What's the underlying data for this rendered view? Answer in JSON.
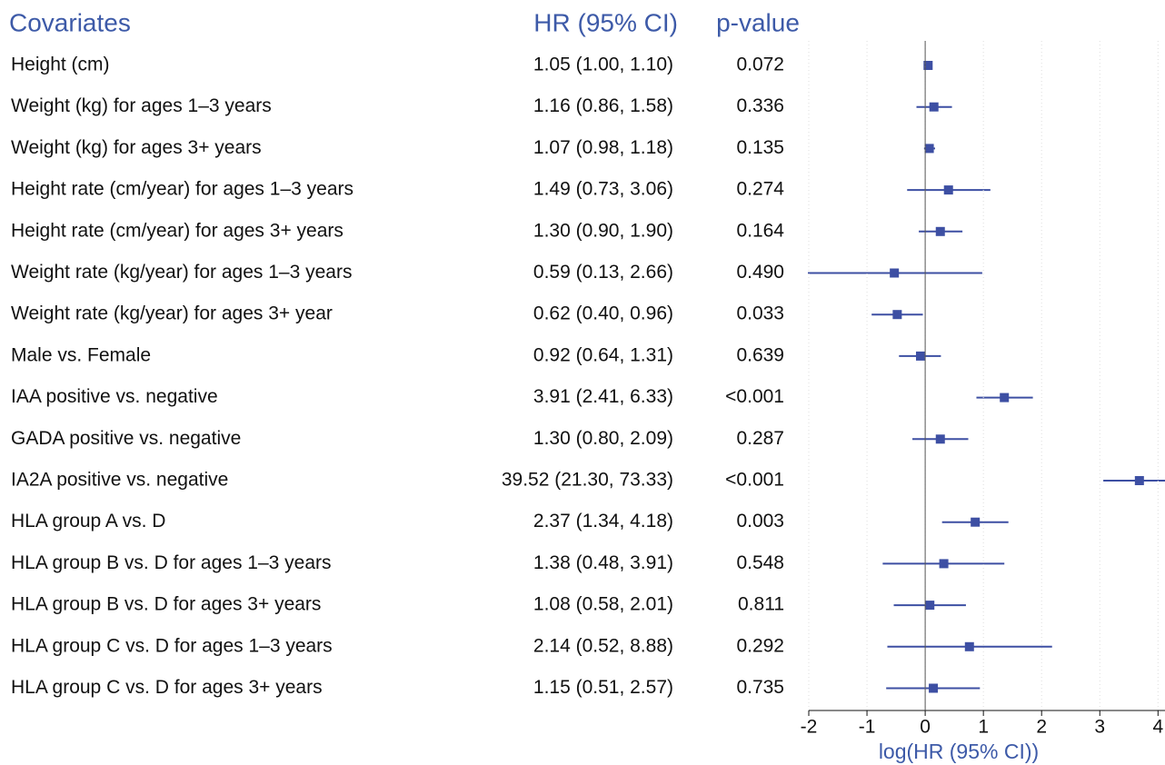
{
  "chart_data": {
    "type": "forest",
    "column_headers": [
      "Covariates",
      "HR (95% CI)",
      "p-value"
    ],
    "categories": [
      "Height (cm)",
      "Weight (kg) for ages 1–3 years",
      "Weight (kg) for ages 3+ years",
      "Height rate (cm/year) for ages 1–3 years",
      "Height rate (cm/year) for ages 3+ years",
      "Weight rate (kg/year) for ages 1–3 years",
      "Weight rate (kg/year) for ages 3+ year",
      "Male vs. Female",
      "IAA positive vs. negative",
      "GADA positive vs. negative",
      "IA2A positive vs. negative",
      "HLA group A vs. D",
      "HLA group B vs. D for ages 1–3 years",
      "HLA group B vs. D for ages 3+ years",
      "HLA group C vs. D for ages 1–3 years",
      "HLA group C vs. D for ages 3+ years"
    ],
    "hr_labels": [
      "1.05 (1.00, 1.10)",
      "1.16 (0.86, 1.58)",
      "1.07 (0.98, 1.18)",
      "1.49 (0.73, 3.06)",
      "1.30 (0.90, 1.90)",
      "0.59 (0.13, 2.66)",
      "0.62 (0.40, 0.96)",
      "0.92 (0.64, 1.31)",
      "3.91 (2.41, 6.33)",
      "1.30 (0.80, 2.09)",
      "39.52 (21.30, 73.33)",
      "2.37 (1.34, 4.18)",
      "1.38 (0.48, 3.91)",
      "1.08 (0.58, 2.01)",
      "2.14 (0.52, 8.88)",
      "1.15 (0.51, 2.57)"
    ],
    "p_values": [
      "0.072",
      "0.336",
      "0.135",
      "0.274",
      "0.164",
      "0.490",
      "0.033",
      "0.639",
      "<0.001",
      "0.287",
      "<0.001",
      "0.003",
      "0.548",
      "0.811",
      "0.292",
      "0.735"
    ],
    "values": [
      0.05,
      0.15,
      0.07,
      0.4,
      0.26,
      -0.53,
      -0.48,
      -0.08,
      1.36,
      0.26,
      3.68,
      0.86,
      0.32,
      0.08,
      0.76,
      0.14
    ],
    "lower": [
      0.0,
      -0.15,
      -0.02,
      -0.31,
      -0.11,
      -2.04,
      -0.92,
      -0.45,
      0.88,
      -0.22,
      3.06,
      0.29,
      -0.73,
      -0.54,
      -0.65,
      -0.67
    ],
    "upper": [
      0.1,
      0.46,
      0.17,
      1.12,
      0.64,
      0.98,
      -0.04,
      0.27,
      1.85,
      0.74,
      4.3,
      1.43,
      1.36,
      0.7,
      2.18,
      0.94
    ],
    "color": "#3d4fa3",
    "xlabel": "log(HR (95% CI))",
    "xlim": [
      -2,
      4.12
    ],
    "xticks": [
      -2,
      -1,
      0,
      1,
      2,
      3,
      4
    ],
    "grid": true
  }
}
